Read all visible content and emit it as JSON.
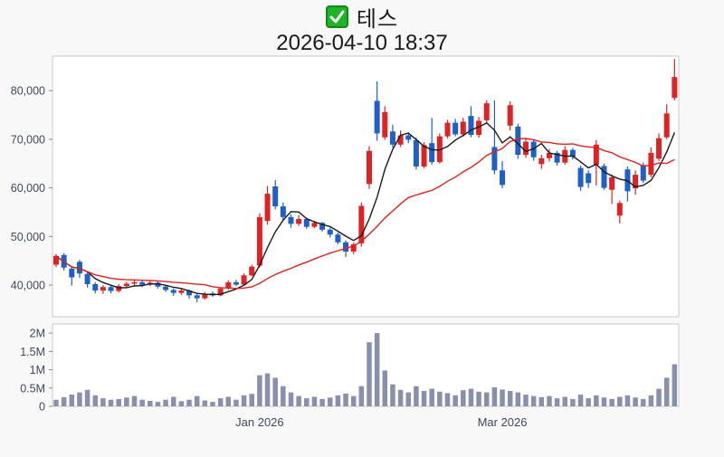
{
  "header": {
    "title": "테스",
    "timestamp": "2026-04-10 18:37",
    "checkbox_icon": "green-checkmark"
  },
  "chart_data": {
    "type": "candlestick_with_volume",
    "title": "테스",
    "subtitle": "2026-04-10 18:37",
    "grid": false,
    "legend_position": "none",
    "price_axis": {
      "ticks": [
        40000,
        50000,
        60000,
        70000,
        80000
      ],
      "tick_labels": [
        "40,000",
        "50,000",
        "60,000",
        "70,000",
        "80,000"
      ],
      "range": [
        33500,
        87100
      ]
    },
    "volume_axis": {
      "ticks": [
        0,
        0.5,
        1,
        1.5,
        2
      ],
      "tick_labels": [
        "0",
        "0.5M",
        "1M",
        "1.5M",
        "2M"
      ],
      "unit": "M",
      "range": [
        0,
        2.25
      ]
    },
    "x_axis": {
      "tick_labels": [
        "Jan 2026",
        "Mar 2026"
      ],
      "tick_indices": [
        26,
        57
      ]
    },
    "colors": {
      "up": "#dd2323",
      "down": "#1e5fc8",
      "volume": "#8890ad",
      "ma_short": "#1a1a1a",
      "ma_long": "#e02020",
      "axis_text": "#40485e",
      "panel_border": "#c9c9c9",
      "panel_bg": "#ffffff"
    },
    "overlays": [
      {
        "name": "ma-short",
        "type": "sma",
        "window": 5,
        "color": "#1a1a1a"
      },
      {
        "name": "ma-long",
        "type": "sma",
        "window": 20,
        "color": "#e02020"
      }
    ],
    "series": {
      "ohlc": [
        [
          44200,
          46400,
          43700,
          46000
        ],
        [
          46200,
          46600,
          43000,
          43600
        ],
        [
          43400,
          43900,
          39900,
          41600
        ],
        [
          44800,
          45200,
          41500,
          42400
        ],
        [
          42300,
          42800,
          39500,
          40200
        ],
        [
          40200,
          40600,
          38300,
          38900
        ],
        [
          38900,
          40000,
          38200,
          39600
        ],
        [
          39600,
          39900,
          38300,
          38800
        ],
        [
          38800,
          40200,
          38500,
          39800
        ],
        [
          39800,
          40700,
          39400,
          40300
        ],
        [
          40300,
          41000,
          39900,
          40600
        ],
        [
          40600,
          40900,
          39600,
          40100
        ],
        [
          40100,
          40900,
          39800,
          40500
        ],
        [
          40500,
          40800,
          39300,
          39700
        ],
        [
          39700,
          40000,
          38600,
          39000
        ],
        [
          39000,
          39300,
          37800,
          38400
        ],
        [
          38400,
          39200,
          38000,
          38900
        ],
        [
          38900,
          39100,
          37200,
          37900
        ],
        [
          37900,
          38200,
          36500,
          37300
        ],
        [
          37300,
          38600,
          37000,
          38200
        ],
        [
          38300,
          38700,
          37600,
          37900
        ],
        [
          37900,
          39600,
          37700,
          39300
        ],
        [
          39300,
          41000,
          39000,
          40600
        ],
        [
          40600,
          41100,
          39800,
          40100
        ],
        [
          40100,
          42400,
          40000,
          42000
        ],
        [
          42000,
          44200,
          41800,
          43800
        ],
        [
          44000,
          54800,
          43600,
          54000
        ],
        [
          53200,
          60400,
          52400,
          58800
        ],
        [
          60300,
          61600,
          55600,
          56200
        ],
        [
          56200,
          57000,
          53200,
          54000
        ],
        [
          54000,
          54600,
          51800,
          52600
        ],
        [
          52600,
          54400,
          52200,
          53600
        ],
        [
          53600,
          53900,
          51600,
          52000
        ],
        [
          52000,
          53200,
          51700,
          52800
        ],
        [
          52800,
          53000,
          51000,
          51400
        ],
        [
          51400,
          51800,
          49800,
          50400
        ],
        [
          50400,
          50800,
          48400,
          48800
        ],
        [
          48800,
          49200,
          45800,
          46900
        ],
        [
          46900,
          48800,
          46400,
          48400
        ],
        [
          48600,
          57000,
          47900,
          56300
        ],
        [
          60800,
          68600,
          59800,
          67600
        ],
        [
          77900,
          81900,
          69700,
          71200
        ],
        [
          70400,
          76800,
          69900,
          75600
        ],
        [
          71600,
          73000,
          68300,
          68900
        ],
        [
          68900,
          71800,
          68400,
          70800
        ],
        [
          70800,
          71300,
          69200,
          69900
        ],
        [
          69800,
          70400,
          63800,
          64400
        ],
        [
          64400,
          69400,
          64000,
          68800
        ],
        [
          69200,
          74400,
          64800,
          65300
        ],
        [
          65300,
          71200,
          65000,
          70600
        ],
        [
          70600,
          74000,
          70200,
          73400
        ],
        [
          73400,
          74200,
          70600,
          71000
        ],
        [
          71000,
          74400,
          70500,
          73600
        ],
        [
          74800,
          76800,
          70400,
          70900
        ],
        [
          70900,
          74600,
          70300,
          73800
        ],
        [
          73900,
          78000,
          73200,
          77400
        ],
        [
          68400,
          78000,
          62800,
          63600
        ],
        [
          63600,
          65500,
          59900,
          60600
        ],
        [
          72800,
          77800,
          71800,
          77000
        ],
        [
          72600,
          73200,
          66000,
          66800
        ],
        [
          66800,
          70200,
          66200,
          69500
        ],
        [
          69500,
          70000,
          65600,
          66300
        ],
        [
          64900,
          66800,
          63900,
          66100
        ],
        [
          66100,
          68000,
          65400,
          67200
        ],
        [
          67200,
          67600,
          64600,
          65200
        ],
        [
          65200,
          68600,
          64800,
          67800
        ],
        [
          67800,
          68200,
          65800,
          66400
        ],
        [
          64100,
          64600,
          59400,
          60200
        ],
        [
          63000,
          63600,
          60000,
          61000
        ],
        [
          64800,
          69800,
          60500,
          68900
        ],
        [
          64500,
          65000,
          59600,
          60000
        ],
        [
          59600,
          62800,
          56700,
          62200
        ],
        [
          54300,
          57400,
          52700,
          56900
        ],
        [
          63800,
          64400,
          57200,
          59300
        ],
        [
          59900,
          63600,
          58600,
          62700
        ],
        [
          64700,
          65200,
          61000,
          61500
        ],
        [
          62700,
          68300,
          62200,
          67200
        ],
        [
          66000,
          71200,
          65500,
          70200
        ],
        [
          70400,
          77200,
          70000,
          75300
        ],
        [
          78500,
          86500,
          78000,
          82800
        ]
      ],
      "volume_millions": [
        0.18,
        0.25,
        0.32,
        0.38,
        0.45,
        0.3,
        0.22,
        0.18,
        0.2,
        0.24,
        0.28,
        0.18,
        0.15,
        0.12,
        0.18,
        0.26,
        0.14,
        0.18,
        0.28,
        0.16,
        0.12,
        0.22,
        0.26,
        0.18,
        0.3,
        0.34,
        0.85,
        0.9,
        0.78,
        0.55,
        0.38,
        0.28,
        0.22,
        0.26,
        0.2,
        0.24,
        0.3,
        0.35,
        0.28,
        0.55,
        1.75,
        2.0,
        0.98,
        0.6,
        0.45,
        0.38,
        0.55,
        0.42,
        0.48,
        0.4,
        0.36,
        0.3,
        0.44,
        0.48,
        0.4,
        0.38,
        0.52,
        0.46,
        0.42,
        0.38,
        0.32,
        0.28,
        0.25,
        0.28,
        0.22,
        0.26,
        0.2,
        0.32,
        0.22,
        0.3,
        0.24,
        0.2,
        0.26,
        0.3,
        0.24,
        0.2,
        0.3,
        0.48,
        0.78,
        1.15
      ]
    }
  }
}
